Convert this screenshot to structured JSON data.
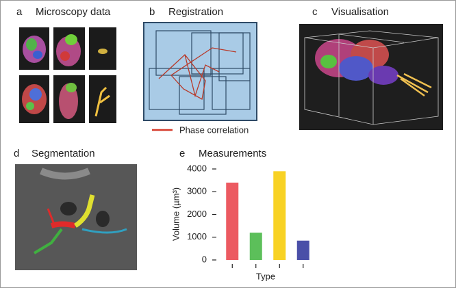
{
  "panels": [
    {
      "letter": "a",
      "title": "Microscopy data"
    },
    {
      "letter": "b",
      "title": "Registration"
    },
    {
      "letter": "c",
      "title": "Visualisation"
    },
    {
      "letter": "d",
      "title": "Segmentation"
    }
  ],
  "legend": "Phase correlation",
  "chart_data": {
    "type": "bar",
    "panel_letter": "e",
    "title": "Measurements",
    "y_label": "Volume (µm³)",
    "x_label": "Type",
    "categories": [
      null,
      null,
      null,
      null
    ],
    "values": [
      3400,
      1200,
      3900,
      850
    ],
    "colors": [
      "#ec5a61",
      "#5cbf5a",
      "#f8d224",
      "#4a4fa8"
    ],
    "ylim": [
      0,
      4000
    ],
    "yticks": [
      0,
      1000,
      2000,
      3000,
      4000
    ],
    "grid": false
  }
}
